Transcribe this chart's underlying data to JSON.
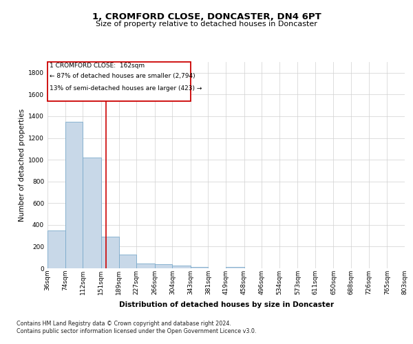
{
  "title": "1, CROMFORD CLOSE, DONCASTER, DN4 6PT",
  "subtitle": "Size of property relative to detached houses in Doncaster",
  "xlabel": "Distribution of detached houses by size in Doncaster",
  "ylabel": "Number of detached properties",
  "footnote1": "Contains HM Land Registry data © Crown copyright and database right 2024.",
  "footnote2": "Contains public sector information licensed under the Open Government Licence v3.0.",
  "bar_edges": [
    36,
    74,
    112,
    151,
    189,
    227,
    266,
    304,
    343,
    381,
    419,
    458,
    496,
    534,
    573,
    611,
    650,
    688,
    726,
    765,
    803
  ],
  "bar_values": [
    350,
    1350,
    1020,
    290,
    125,
    42,
    40,
    25,
    15,
    0,
    15,
    0,
    0,
    0,
    0,
    0,
    0,
    0,
    0,
    0
  ],
  "bar_color": "#c8d8e8",
  "bar_edge_color": "#7aaacb",
  "property_size": 162,
  "ylim": [
    0,
    1900
  ],
  "yticks": [
    0,
    200,
    400,
    600,
    800,
    1000,
    1200,
    1400,
    1600,
    1800
  ],
  "marker_line_color": "#cc0000",
  "annotation_box_color": "#cc0000",
  "annotation_text_line1": "1 CROMFORD CLOSE:  162sqm",
  "annotation_text_line2": "← 87% of detached houses are smaller (2,794)",
  "annotation_text_line3": "13% of semi-detached houses are larger (423) →",
  "background_color": "#ffffff",
  "grid_color": "#d0d0d0",
  "title_fontsize": 9.5,
  "subtitle_fontsize": 8,
  "ylabel_fontsize": 7.5,
  "xlabel_fontsize": 7.5,
  "tick_fontsize": 6.5,
  "footnote_fontsize": 5.8,
  "ann_fontsize": 6.5
}
